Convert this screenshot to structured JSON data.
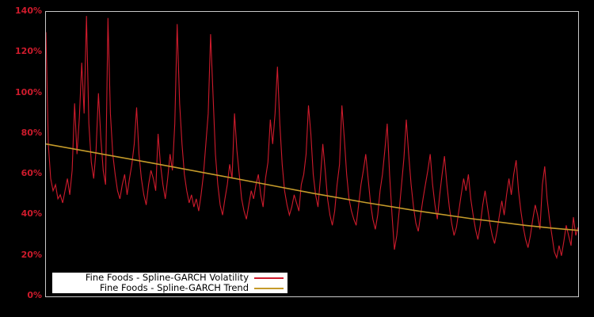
{
  "figure": {
    "background": "#000000",
    "plot_border_color": "#c9c9c9"
  },
  "y_axis": {
    "label_color": "#ce1b2c",
    "ticks": [
      "140%",
      "120%",
      "100%",
      "80%",
      "60%",
      "40%",
      "20%",
      "0%"
    ]
  },
  "legend": {
    "background": "#ffffff",
    "text_color": "#000000",
    "entries": [
      {
        "label": "Fine Foods - Spline-GARCH Volatility",
        "color": "#ce1b2c"
      },
      {
        "label": "Fine Foods - Spline-GARCH Trend",
        "color": "#c59b2a"
      }
    ]
  },
  "chart_data": {
    "type": "line",
    "title": "",
    "xlabel": "",
    "ylabel": "",
    "ylim": [
      0,
      140
    ],
    "y_tick_labels": [
      "0%",
      "20%",
      "40%",
      "60%",
      "80%",
      "100%",
      "120%",
      "140%"
    ],
    "x_axis_labels_visible": false,
    "grid": false,
    "legend_position": "bottom-left",
    "background": "#000000",
    "series": [
      {
        "name": "Fine Foods - Spline-GARCH Volatility",
        "color": "#ce1b2c",
        "unit": "%",
        "values": [
          130,
          75,
          58,
          52,
          55,
          48,
          50,
          46,
          52,
          58,
          50,
          62,
          95,
          70,
          88,
          115,
          90,
          138,
          85,
          66,
          58,
          72,
          100,
          78,
          62,
          55,
          137,
          90,
          70,
          60,
          52,
          48,
          55,
          60,
          50,
          58,
          65,
          75,
          93,
          70,
          58,
          50,
          45,
          55,
          62,
          58,
          52,
          80,
          65,
          55,
          48,
          58,
          70,
          62,
          85,
          134,
          95,
          75,
          60,
          52,
          46,
          50,
          44,
          48,
          42,
          50,
          60,
          75,
          90,
          129,
          100,
          70,
          55,
          45,
          40,
          48,
          55,
          65,
          58,
          90,
          72,
          60,
          48,
          42,
          38,
          45,
          52,
          48,
          55,
          60,
          50,
          44,
          58,
          66,
          87,
          75,
          90,
          113,
          85,
          65,
          52,
          45,
          40,
          44,
          50,
          46,
          42,
          55,
          60,
          70,
          94,
          80,
          60,
          50,
          44,
          58,
          75,
          62,
          48,
          40,
          35,
          42,
          55,
          65,
          94,
          78,
          60,
          48,
          42,
          38,
          35,
          45,
          55,
          62,
          70,
          58,
          46,
          38,
          33,
          40,
          52,
          60,
          72,
          85,
          60,
          40,
          23,
          30,
          42,
          55,
          68,
          87,
          70,
          55,
          44,
          36,
          32,
          40,
          48,
          55,
          62,
          70,
          55,
          45,
          38,
          50,
          60,
          69,
          55,
          44,
          36,
          30,
          34,
          42,
          50,
          58,
          52,
          60,
          48,
          40,
          33,
          28,
          35,
          45,
          52,
          44,
          36,
          30,
          26,
          32,
          40,
          47,
          40,
          50,
          58,
          50,
          60,
          67,
          52,
          42,
          34,
          28,
          24,
          30,
          38,
          45,
          40,
          33,
          55,
          64,
          48,
          38,
          30,
          22,
          19,
          25,
          20,
          27,
          35,
          30,
          25,
          39,
          30,
          34
        ]
      },
      {
        "name": "Fine Foods - Spline-GARCH Trend",
        "color": "#c59b2a",
        "unit": "%",
        "points": [
          [
            0,
            75
          ],
          [
            0.1,
            70.3
          ],
          [
            0.2,
            65.6
          ],
          [
            0.3,
            60.7
          ],
          [
            0.4,
            55.8
          ],
          [
            0.5,
            50.8
          ],
          [
            0.6,
            46.2
          ],
          [
            0.7,
            42
          ],
          [
            0.8,
            38.2
          ],
          [
            0.9,
            35
          ],
          [
            0.95,
            33.6
          ],
          [
            1,
            32.5
          ]
        ]
      }
    ]
  }
}
